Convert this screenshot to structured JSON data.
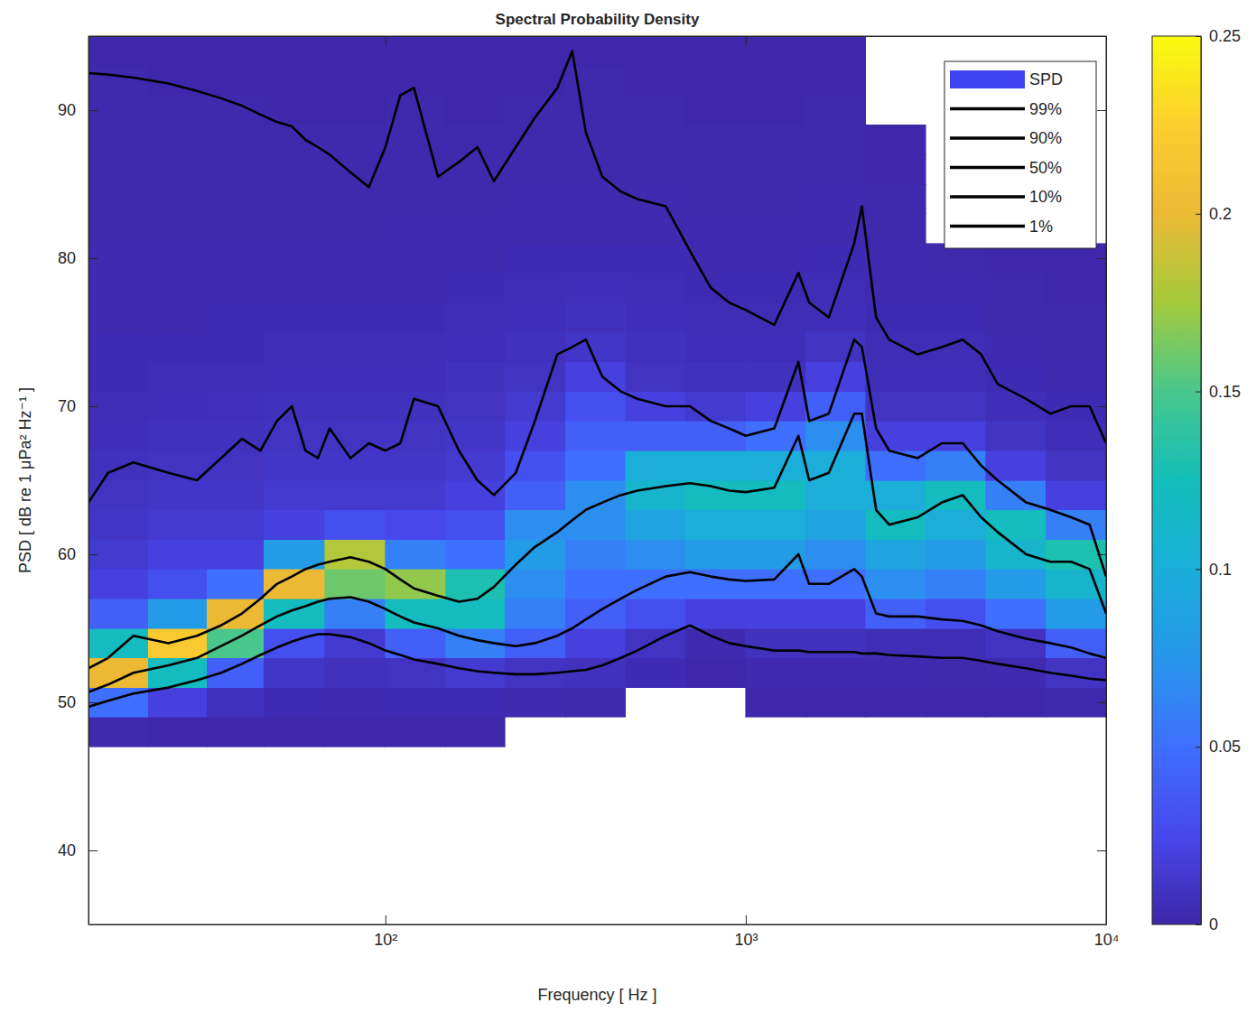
{
  "chart_data": {
    "type": "heatmap",
    "title": "Spectral Probability Density",
    "x_label": "Frequency [ Hz ]",
    "y_label": "PSD [ dB re 1 μPa² Hz⁻¹ ]",
    "log": "x",
    "grid": false,
    "legend": "top-right",
    "xlim": [
      15,
      10000
    ],
    "xticks": [
      {
        "value": 100,
        "label": "10²"
      },
      {
        "value": 1000,
        "label": "10³"
      },
      {
        "value": 10000,
        "label": "10⁴"
      }
    ],
    "ylim": [
      35,
      95
    ],
    "yticks": [
      40,
      50,
      60,
      70,
      80,
      90
    ],
    "colorbar": {
      "lim": [
        0,
        0.25
      ],
      "ticks": [
        0,
        0.05,
        0.1,
        0.15,
        0.2,
        0.25
      ]
    },
    "spd": {
      "name": "SPD",
      "color": "#4043f0",
      "x_edges": [
        15,
        22,
        32,
        46,
        68,
        100,
        147,
        215,
        316,
        464,
        681,
        1000,
        1468,
        2154,
        3162,
        4642,
        6813,
        10000
      ],
      "y_edges": [
        47,
        49,
        51,
        53,
        55,
        57,
        59,
        61,
        63,
        65,
        67,
        69,
        71,
        73,
        75,
        77,
        79,
        81,
        83,
        85,
        87,
        89,
        91,
        93,
        95
      ],
      "density": [
        [
          0.002,
          0.05,
          0.2,
          0.12,
          0.04,
          0.02,
          0.015,
          0.012,
          0.01,
          0.008,
          0.006,
          0.005,
          0.004,
          0.004,
          0.003,
          0.003,
          0.003,
          0.002,
          0.002,
          0.002,
          0.002,
          0.002,
          0.002,
          0.001
        ],
        [
          0.001,
          0.02,
          0.12,
          0.22,
          0.08,
          0.03,
          0.02,
          0.015,
          0.012,
          0.01,
          0.008,
          0.006,
          0.005,
          0.004,
          0.003,
          0.003,
          0.003,
          0.002,
          0.002,
          0.002,
          0.002,
          0.002,
          0.001,
          0.001
        ],
        [
          0.001,
          0.008,
          0.04,
          0.15,
          0.2,
          0.05,
          0.02,
          0.015,
          0.012,
          0.01,
          0.008,
          0.007,
          0.005,
          0.004,
          0.004,
          0.003,
          0.003,
          0.002,
          0.002,
          0.002,
          0.002,
          0.002,
          0.001,
          0.001
        ],
        [
          0.001,
          0.004,
          0.012,
          0.03,
          0.12,
          0.2,
          0.08,
          0.02,
          0.015,
          0.012,
          0.01,
          0.008,
          0.006,
          0.005,
          0.004,
          0.003,
          0.003,
          0.002,
          0.002,
          0.002,
          0.002,
          0.001,
          0.001,
          0.001
        ],
        [
          0.001,
          0.003,
          0.008,
          0.015,
          0.06,
          0.16,
          0.18,
          0.03,
          0.015,
          0.012,
          0.01,
          0.008,
          0.006,
          0.005,
          0.004,
          0.003,
          0.003,
          0.002,
          0.002,
          0.002,
          0.002,
          0.001,
          0.001,
          0.001
        ],
        [
          0.001,
          0.004,
          0.01,
          0.04,
          0.12,
          0.17,
          0.06,
          0.025,
          0.015,
          0.012,
          0.01,
          0.008,
          0.006,
          0.005,
          0.004,
          0.003,
          0.003,
          0.003,
          0.002,
          0.002,
          0.002,
          0.002,
          0.001,
          0.001
        ],
        [
          0.001,
          0.004,
          0.015,
          0.06,
          0.12,
          0.13,
          0.05,
          0.03,
          0.02,
          0.015,
          0.012,
          0.01,
          0.008,
          0.006,
          0.005,
          0.004,
          0.003,
          0.003,
          0.002,
          0.002,
          0.002,
          0.001,
          0.001,
          0.001
        ],
        [
          null,
          0.003,
          0.01,
          0.04,
          0.06,
          0.07,
          0.08,
          0.07,
          0.04,
          0.03,
          0.02,
          0.015,
          0.01,
          0.008,
          0.006,
          0.005,
          0.004,
          0.003,
          0.003,
          0.002,
          0.002,
          0.002,
          0.001,
          0.001
        ],
        [
          null,
          0.002,
          0.008,
          0.02,
          0.04,
          0.05,
          0.06,
          0.07,
          0.07,
          0.05,
          0.04,
          0.03,
          0.02,
          0.012,
          0.008,
          0.006,
          0.004,
          0.003,
          0.003,
          0.002,
          0.002,
          0.002,
          0.002,
          0.001
        ],
        [
          null,
          null,
          0.004,
          0.01,
          0.03,
          0.05,
          0.07,
          0.09,
          0.11,
          0.1,
          0.04,
          0.02,
          0.01,
          0.008,
          0.006,
          0.005,
          0.004,
          0.003,
          0.003,
          0.002,
          0.002,
          0.002,
          0.001,
          0.001
        ],
        [
          null,
          null,
          0.001,
          0.003,
          0.02,
          0.05,
          0.08,
          0.1,
          0.12,
          0.1,
          0.04,
          0.015,
          0.008,
          0.006,
          0.005,
          0.004,
          0.003,
          0.003,
          0.002,
          0.002,
          0.002,
          0.001,
          0.001,
          0.001
        ],
        [
          null,
          0.001,
          0.003,
          0.008,
          0.02,
          0.05,
          0.08,
          0.1,
          0.12,
          0.1,
          0.05,
          0.02,
          0.008,
          0.006,
          0.005,
          0.004,
          0.003,
          0.003,
          0.002,
          0.002,
          0.002,
          0.001,
          0.001,
          0.001
        ],
        [
          null,
          0.001,
          0.003,
          0.008,
          0.02,
          0.05,
          0.07,
          0.09,
          0.1,
          0.1,
          0.07,
          0.04,
          0.02,
          0.01,
          0.006,
          0.005,
          0.004,
          0.003,
          0.003,
          0.002,
          0.002,
          0.002,
          0.001,
          0.001
        ],
        [
          null,
          0.001,
          0.003,
          0.005,
          0.04,
          0.07,
          0.09,
          0.12,
          0.1,
          0.05,
          0.02,
          0.01,
          0.006,
          0.005,
          0.004,
          0.003,
          0.003,
          0.002,
          0.002,
          0.001,
          0.001,
          null,
          null,
          null
        ],
        [
          null,
          0.001,
          0.002,
          0.005,
          0.03,
          0.06,
          0.08,
          0.1,
          0.12,
          0.06,
          0.02,
          0.01,
          0.006,
          0.005,
          0.004,
          0.003,
          0.002,
          null,
          null,
          null,
          null,
          null,
          null,
          null
        ],
        [
          null,
          0.001,
          0.003,
          0.01,
          0.05,
          0.08,
          0.11,
          0.12,
          0.06,
          0.02,
          0.01,
          0.006,
          0.004,
          0.003,
          0.002,
          0.002,
          0.001,
          null,
          null,
          null,
          null,
          null,
          null,
          null
        ],
        [
          null,
          0.002,
          0.01,
          0.04,
          0.08,
          0.11,
          0.13,
          0.06,
          0.02,
          0.01,
          0.006,
          0.004,
          0.003,
          0.002,
          0.002,
          0.001,
          0.001,
          null,
          null,
          null,
          null,
          null,
          null,
          null
        ]
      ]
    },
    "x": [
      15,
      17,
      20,
      25,
      30,
      35,
      40,
      45,
      50,
      55,
      60,
      65,
      70,
      80,
      90,
      100,
      110,
      120,
      140,
      160,
      180,
      200,
      230,
      260,
      300,
      330,
      360,
      400,
      450,
      500,
      600,
      700,
      800,
      900,
      1000,
      1200,
      1400,
      1500,
      1700,
      2000,
      2100,
      2300,
      2500,
      3000,
      3500,
      4000,
      4500,
      5000,
      6000,
      7000,
      8000,
      9000,
      10000
    ],
    "series": [
      {
        "name": "99%",
        "type": "line",
        "color": "#000000",
        "values": [
          92.5,
          92.4,
          92.2,
          91.8,
          91.3,
          90.8,
          90.3,
          89.7,
          89.2,
          88.9,
          88.0,
          87.5,
          87.0,
          85.8,
          84.8,
          87.5,
          91.0,
          91.5,
          85.5,
          86.5,
          87.5,
          85.2,
          87.5,
          89.5,
          91.5,
          94.0,
          88.5,
          85.5,
          84.5,
          84.0,
          83.5,
          80.5,
          78.0,
          77.0,
          76.5,
          75.5,
          79.0,
          77.0,
          76.0,
          81.0,
          83.5,
          76.0,
          74.5,
          73.5,
          74.0,
          74.5,
          73.5,
          71.5,
          70.5,
          69.5,
          70.0,
          70.0,
          67.5
        ]
      },
      {
        "name": "90%",
        "type": "line",
        "color": "#000000",
        "values": [
          63.5,
          65.5,
          66.2,
          65.5,
          65.0,
          66.5,
          67.8,
          67.0,
          69.0,
          70.0,
          67.0,
          66.5,
          68.5,
          66.5,
          67.5,
          67.0,
          67.5,
          70.5,
          70.0,
          67.0,
          65.0,
          64.0,
          65.5,
          69.0,
          73.5,
          74.0,
          74.5,
          72.0,
          71.0,
          70.5,
          70.0,
          70.0,
          69.0,
          68.5,
          68.0,
          68.5,
          73.0,
          69.0,
          69.5,
          74.5,
          74.0,
          68.5,
          67.0,
          66.5,
          67.5,
          67.5,
          66.0,
          65.0,
          63.5,
          63.0,
          62.5,
          62.0,
          58.5
        ]
      },
      {
        "name": "50%",
        "type": "line",
        "color": "#000000",
        "values": [
          52.3,
          53.0,
          54.5,
          54.0,
          54.5,
          55.2,
          56.0,
          57.0,
          58.0,
          58.5,
          59.0,
          59.3,
          59.5,
          59.8,
          59.5,
          59.0,
          58.3,
          57.7,
          57.2,
          56.8,
          57.0,
          57.8,
          59.3,
          60.5,
          61.5,
          62.3,
          63.0,
          63.5,
          64.0,
          64.3,
          64.6,
          64.8,
          64.6,
          64.3,
          64.2,
          64.5,
          68.0,
          65.0,
          65.5,
          69.5,
          69.5,
          63.0,
          62.0,
          62.5,
          63.5,
          64.0,
          62.5,
          61.5,
          60.0,
          59.5,
          59.5,
          59.0,
          56.0
        ]
      },
      {
        "name": "10%",
        "type": "line",
        "color": "#000000",
        "values": [
          50.7,
          51.2,
          52.0,
          52.5,
          53.0,
          53.8,
          54.5,
          55.2,
          55.8,
          56.2,
          56.5,
          56.8,
          57.0,
          57.1,
          56.8,
          56.3,
          55.8,
          55.4,
          55.0,
          54.5,
          54.2,
          54.0,
          53.8,
          54.0,
          54.5,
          55.0,
          55.6,
          56.3,
          57.0,
          57.6,
          58.5,
          58.8,
          58.5,
          58.3,
          58.2,
          58.3,
          60.0,
          58.0,
          58.0,
          59.0,
          58.5,
          56.0,
          55.8,
          55.8,
          55.6,
          55.5,
          55.2,
          54.8,
          54.3,
          54.0,
          53.7,
          53.3,
          53.0
        ]
      },
      {
        "name": "1%",
        "type": "line",
        "color": "#000000",
        "values": [
          49.7,
          50.1,
          50.6,
          51.0,
          51.5,
          52.0,
          52.6,
          53.2,
          53.7,
          54.1,
          54.4,
          54.6,
          54.6,
          54.4,
          54.0,
          53.5,
          53.2,
          52.9,
          52.6,
          52.3,
          52.1,
          52.0,
          51.9,
          51.9,
          52.0,
          52.1,
          52.2,
          52.5,
          53.0,
          53.5,
          54.5,
          55.2,
          54.5,
          54.0,
          53.8,
          53.5,
          53.5,
          53.4,
          53.4,
          53.4,
          53.3,
          53.3,
          53.2,
          53.1,
          53.0,
          53.0,
          52.8,
          52.6,
          52.3,
          52.0,
          51.8,
          51.6,
          51.5
        ]
      }
    ]
  }
}
